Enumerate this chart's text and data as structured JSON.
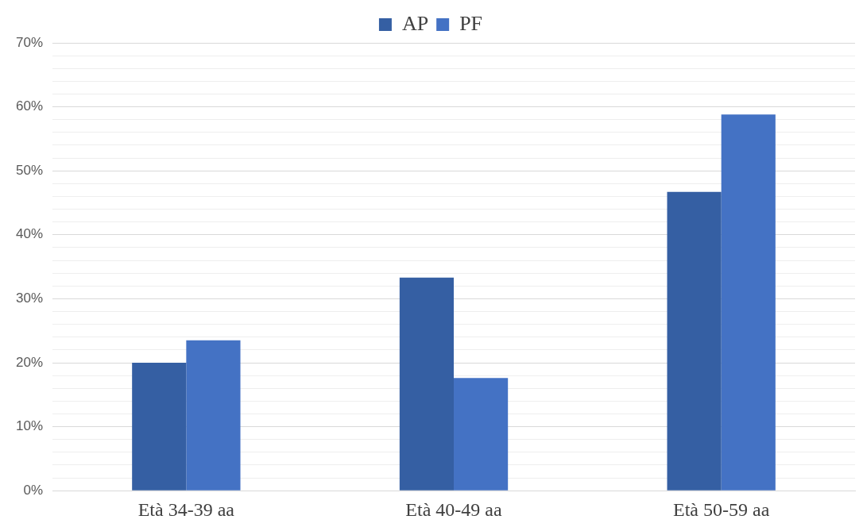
{
  "chart_data": {
    "type": "bar",
    "categories": [
      "Età 34-39 aa",
      "Età 40-49 aa",
      "Età 50-59 aa"
    ],
    "series": [
      {
        "name": "AP",
        "color": "#355fa3",
        "values": [
          20,
          33.3,
          46.7
        ]
      },
      {
        "name": "PF",
        "color": "#4472c4",
        "values": [
          23.5,
          17.6,
          58.8
        ]
      }
    ],
    "ylim": [
      0,
      70
    ],
    "yticks": [
      {
        "value": 0,
        "label": "0%"
      },
      {
        "value": 2,
        "label": null
      },
      {
        "value": 4,
        "label": null
      },
      {
        "value": 6,
        "label": null
      },
      {
        "value": 8,
        "label": null
      },
      {
        "value": 10,
        "label": "10%"
      },
      {
        "value": 12,
        "label": null
      },
      {
        "value": 14,
        "label": null
      },
      {
        "value": 16,
        "label": null
      },
      {
        "value": 18,
        "label": null
      },
      {
        "value": 20,
        "label": "20%"
      },
      {
        "value": 22,
        "label": null
      },
      {
        "value": 24,
        "label": null
      },
      {
        "value": 26,
        "label": null
      },
      {
        "value": 28,
        "label": null
      },
      {
        "value": 30,
        "label": "30%"
      },
      {
        "value": 32,
        "label": null
      },
      {
        "value": 34,
        "label": null
      },
      {
        "value": 36,
        "label": null
      },
      {
        "value": 38,
        "label": null
      },
      {
        "value": 40,
        "label": "40%"
      },
      {
        "value": 42,
        "label": null
      },
      {
        "value": 44,
        "label": null
      },
      {
        "value": 46,
        "label": null
      },
      {
        "value": 48,
        "label": null
      },
      {
        "value": 50,
        "label": "50%"
      },
      {
        "value": 52,
        "label": null
      },
      {
        "value": 54,
        "label": null
      },
      {
        "value": 56,
        "label": null
      },
      {
        "value": 58,
        "label": null
      },
      {
        "value": 60,
        "label": "60%"
      },
      {
        "value": 62,
        "label": null
      },
      {
        "value": 64,
        "label": null
      },
      {
        "value": 66,
        "label": null
      },
      {
        "value": 68,
        "label": null
      },
      {
        "value": 70,
        "label": "70%"
      }
    ],
    "grid": "y",
    "legend": "top"
  }
}
